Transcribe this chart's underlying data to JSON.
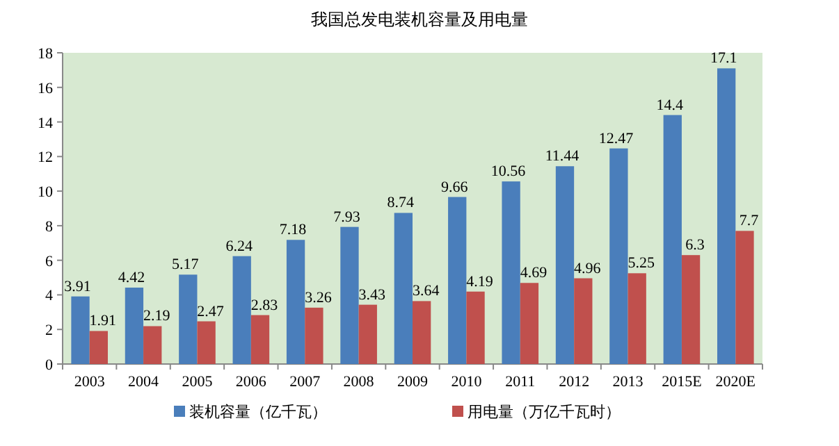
{
  "chart_data": {
    "type": "bar",
    "title": "我国总发电装机容量及用电量",
    "categories": [
      "2003",
      "2004",
      "2005",
      "2006",
      "2007",
      "2008",
      "2009",
      "2010",
      "2011",
      "2012",
      "2013",
      "2015E",
      "2020E"
    ],
    "series": [
      {
        "name": "装机容量（亿千瓦）",
        "color": "#4a7ebb",
        "values": [
          3.91,
          4.42,
          5.17,
          6.24,
          7.18,
          7.93,
          8.74,
          9.66,
          10.56,
          11.44,
          12.47,
          14.4,
          17.1
        ]
      },
      {
        "name": "用电量（万亿千瓦时）",
        "color": "#c0504d",
        "values": [
          1.91,
          2.19,
          2.47,
          2.83,
          3.26,
          3.43,
          3.64,
          4.19,
          4.69,
          4.96,
          5.25,
          6.3,
          7.7
        ]
      }
    ],
    "ylim": [
      0,
      18
    ],
    "yticks": [
      0,
      2,
      4,
      6,
      8,
      10,
      12,
      14,
      16,
      18
    ],
    "data_labels": true,
    "grid": false,
    "legend": "bottom"
  }
}
